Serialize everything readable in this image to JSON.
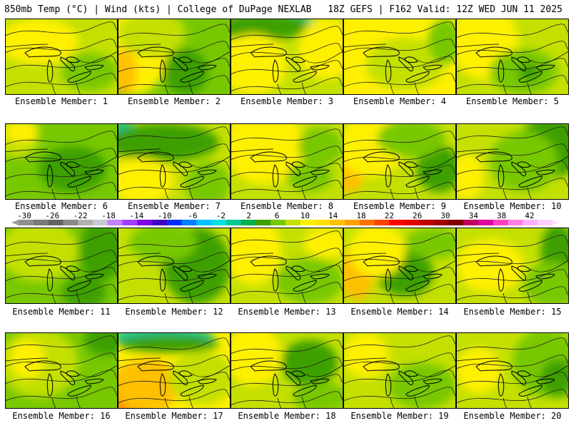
{
  "header": {
    "left": "850mb Temp (°C) | Wind (kts) | College of DuPage NEXLAB",
    "right": "18Z GEFS | F162 Valid: 12Z WED JUN 11 2025"
  },
  "member_label_prefix": "Ensemble Member: ",
  "members": [
    {
      "n": "1",
      "fill": [
        [
          "#c4e000",
          0.5
        ],
        [
          "#fff000",
          0.3
        ],
        [
          "#78c800",
          0.2
        ]
      ],
      "blobs": [
        [
          "#fff000",
          0.3,
          0.3,
          0.35,
          0.3
        ],
        [
          "#78c800",
          0.75,
          0.7,
          0.25,
          0.25
        ]
      ]
    },
    {
      "n": "2",
      "fill": [
        [
          "#78c800",
          0.5
        ]
      ],
      "blobs": [
        [
          "#fff000",
          0.15,
          0.4,
          0.3,
          0.6
        ],
        [
          "#ffc000",
          0.05,
          0.7,
          0.12,
          0.3
        ],
        [
          "#3ca000",
          0.6,
          0.7,
          0.2,
          0.3
        ],
        [
          "#c4e000",
          0.3,
          0.2,
          0.3,
          0.3
        ]
      ]
    },
    {
      "n": "3",
      "fill": [
        [
          "#c4e000",
          0.5
        ]
      ],
      "blobs": [
        [
          "#00c896",
          0.4,
          0.05,
          0.35,
          0.12
        ],
        [
          "#3ca000",
          0.3,
          0.1,
          0.4,
          0.18
        ],
        [
          "#fff000",
          0.2,
          0.6,
          0.3,
          0.4
        ],
        [
          "#fff000",
          0.85,
          0.4,
          0.25,
          0.4
        ]
      ]
    },
    {
      "n": "4",
      "fill": [
        [
          "#fff000",
          0.5
        ]
      ],
      "blobs": [
        [
          "#c4e000",
          0.55,
          0.6,
          0.35,
          0.35
        ],
        [
          "#78c800",
          0.9,
          0.3,
          0.15,
          0.3
        ]
      ]
    },
    {
      "n": "5",
      "fill": [
        [
          "#c4e000",
          0.5
        ]
      ],
      "blobs": [
        [
          "#fff000",
          0.25,
          0.3,
          0.3,
          0.5
        ],
        [
          "#78c800",
          0.6,
          0.7,
          0.3,
          0.3
        ],
        [
          "#3ca000",
          0.65,
          0.7,
          0.1,
          0.12
        ]
      ]
    },
    {
      "n": "6",
      "fill": [
        [
          "#78c800",
          0.5
        ]
      ],
      "blobs": [
        [
          "#3ca000",
          0.6,
          0.6,
          0.3,
          0.3
        ],
        [
          "#c4e000",
          0.1,
          0.2,
          0.2,
          0.25
        ],
        [
          "#fff000",
          0.15,
          0.1,
          0.15,
          0.15
        ]
      ]
    },
    {
      "n": "7",
      "fill": [
        [
          "#c4e000",
          0.5
        ]
      ],
      "blobs": [
        [
          "#00c896",
          0.05,
          0.08,
          0.1,
          0.12
        ],
        [
          "#3ca000",
          0.4,
          0.25,
          0.5,
          0.25
        ],
        [
          "#fff000",
          0.2,
          0.75,
          0.3,
          0.3
        ],
        [
          "#78c800",
          0.8,
          0.8,
          0.2,
          0.3
        ]
      ]
    },
    {
      "n": "8",
      "fill": [
        [
          "#c4e000",
          0.5
        ]
      ],
      "blobs": [
        [
          "#fff000",
          0.3,
          0.3,
          0.35,
          0.5
        ],
        [
          "#78c800",
          0.8,
          0.3,
          0.2,
          0.25
        ],
        [
          "#78c800",
          0.7,
          0.7,
          0.2,
          0.2
        ]
      ]
    },
    {
      "n": "9",
      "fill": [
        [
          "#c4e000",
          0.5
        ]
      ],
      "blobs": [
        [
          "#ffc000",
          0.05,
          0.6,
          0.15,
          0.3
        ],
        [
          "#fff000",
          0.25,
          0.3,
          0.3,
          0.4
        ],
        [
          "#3ca000",
          0.85,
          0.6,
          0.2,
          0.3
        ],
        [
          "#78c800",
          0.6,
          0.2,
          0.3,
          0.25
        ]
      ]
    },
    {
      "n": "10",
      "fill": [
        [
          "#c4e000",
          0.5
        ]
      ],
      "blobs": [
        [
          "#3ca000",
          0.85,
          0.3,
          0.3,
          0.4
        ],
        [
          "#78c800",
          0.6,
          0.5,
          0.3,
          0.4
        ],
        [
          "#fff000",
          0.1,
          0.7,
          0.15,
          0.3
        ]
      ]
    },
    {
      "n": "11",
      "fill": [
        [
          "#78c800",
          0.5
        ]
      ],
      "blobs": [
        [
          "#c4e000",
          0.3,
          0.3,
          0.35,
          0.4
        ],
        [
          "#3ca000",
          0.85,
          0.3,
          0.2,
          0.4
        ],
        [
          "#3ca000",
          0.7,
          0.85,
          0.2,
          0.2
        ]
      ]
    },
    {
      "n": "12",
      "fill": [
        [
          "#c4e000",
          0.5
        ]
      ],
      "blobs": [
        [
          "#3ca000",
          0.7,
          0.5,
          0.3,
          0.5
        ],
        [
          "#78c800",
          0.4,
          0.2,
          0.3,
          0.25
        ]
      ]
    },
    {
      "n": "13",
      "fill": [
        [
          "#c4e000",
          0.5
        ]
      ],
      "blobs": [
        [
          "#fff000",
          0.2,
          0.3,
          0.25,
          0.45
        ],
        [
          "#78c800",
          0.7,
          0.7,
          0.3,
          0.3
        ],
        [
          "#fff000",
          0.85,
          0.2,
          0.2,
          0.2
        ]
      ]
    },
    {
      "n": "14",
      "fill": [
        [
          "#c4e000",
          0.5
        ]
      ],
      "blobs": [
        [
          "#ffc000",
          0.12,
          0.6,
          0.15,
          0.35
        ],
        [
          "#3ca000",
          0.55,
          0.6,
          0.25,
          0.3
        ],
        [
          "#fff000",
          0.3,
          0.3,
          0.25,
          0.35
        ],
        [
          "#78c800",
          0.8,
          0.2,
          0.25,
          0.2
        ]
      ]
    },
    {
      "n": "15",
      "fill": [
        [
          "#c4e000",
          0.5
        ]
      ],
      "blobs": [
        [
          "#3ca000",
          0.9,
          0.3,
          0.15,
          0.35
        ],
        [
          "#78c800",
          0.85,
          0.75,
          0.25,
          0.3
        ],
        [
          "#fff000",
          0.3,
          0.5,
          0.3,
          0.35
        ]
      ]
    },
    {
      "n": "16",
      "fill": [
        [
          "#78c800",
          0.5
        ]
      ],
      "blobs": [
        [
          "#c4e000",
          0.3,
          0.4,
          0.35,
          0.45
        ],
        [
          "#fff000",
          0.2,
          0.35,
          0.15,
          0.25
        ],
        [
          "#3ca000",
          0.9,
          0.1,
          0.2,
          0.2
        ]
      ]
    },
    {
      "n": "17",
      "fill": [
        [
          "#fff000",
          0.5
        ]
      ],
      "blobs": [
        [
          "#00c896",
          0.4,
          0.05,
          0.45,
          0.13
        ],
        [
          "#3ca000",
          0.45,
          0.15,
          0.45,
          0.12
        ],
        [
          "#ff8000",
          0.1,
          0.85,
          0.2,
          0.25
        ],
        [
          "#ffc000",
          0.25,
          0.7,
          0.3,
          0.35
        ],
        [
          "#c4e000",
          0.75,
          0.6,
          0.3,
          0.35
        ]
      ]
    },
    {
      "n": "18",
      "fill": [
        [
          "#c4e000",
          0.5
        ]
      ],
      "blobs": [
        [
          "#3ca000",
          0.7,
          0.4,
          0.25,
          0.3
        ],
        [
          "#fff000",
          0.2,
          0.3,
          0.25,
          0.4
        ],
        [
          "#78c800",
          0.8,
          0.85,
          0.25,
          0.2
        ]
      ]
    },
    {
      "n": "19",
      "fill": [
        [
          "#c4e000",
          0.5
        ]
      ],
      "blobs": [
        [
          "#78c800",
          0.7,
          0.7,
          0.3,
          0.3
        ],
        [
          "#fff000",
          0.2,
          0.3,
          0.2,
          0.3
        ]
      ]
    },
    {
      "n": "20",
      "fill": [
        [
          "#c4e000",
          0.5
        ]
      ],
      "blobs": [
        [
          "#78c800",
          0.8,
          0.4,
          0.3,
          0.45
        ],
        [
          "#fff000",
          0.2,
          0.5,
          0.2,
          0.3
        ],
        [
          "#3ca000",
          0.9,
          0.6,
          0.15,
          0.25
        ]
      ]
    }
  ],
  "legend": {
    "tick_labels": [
      "-30",
      "-26",
      "-22",
      "-18",
      "-14",
      "-10",
      "-6",
      "-2",
      "2",
      "6",
      "10",
      "14",
      "18",
      "22",
      "26",
      "30",
      "34",
      "38",
      "42"
    ],
    "colors": [
      "#909090",
      "#7a7a7a",
      "#646464",
      "#8a8a8a",
      "#b0b0b0",
      "#c8c8d8",
      "#c080ff",
      "#a040ff",
      "#8000e0",
      "#4000c0",
      "#0030ff",
      "#0080ff",
      "#00c0ff",
      "#00e0e0",
      "#00c896",
      "#00b050",
      "#3ca000",
      "#78c800",
      "#c4e000",
      "#fff000",
      "#ffe000",
      "#ffc000",
      "#ffa000",
      "#ff7000",
      "#ff4000",
      "#ff0000",
      "#e00000",
      "#c00000",
      "#a00000",
      "#800000",
      "#c00060",
      "#e000a0",
      "#ff40c0",
      "#ff80e0",
      "#ffb0ff",
      "#ffd0ff"
    ]
  }
}
